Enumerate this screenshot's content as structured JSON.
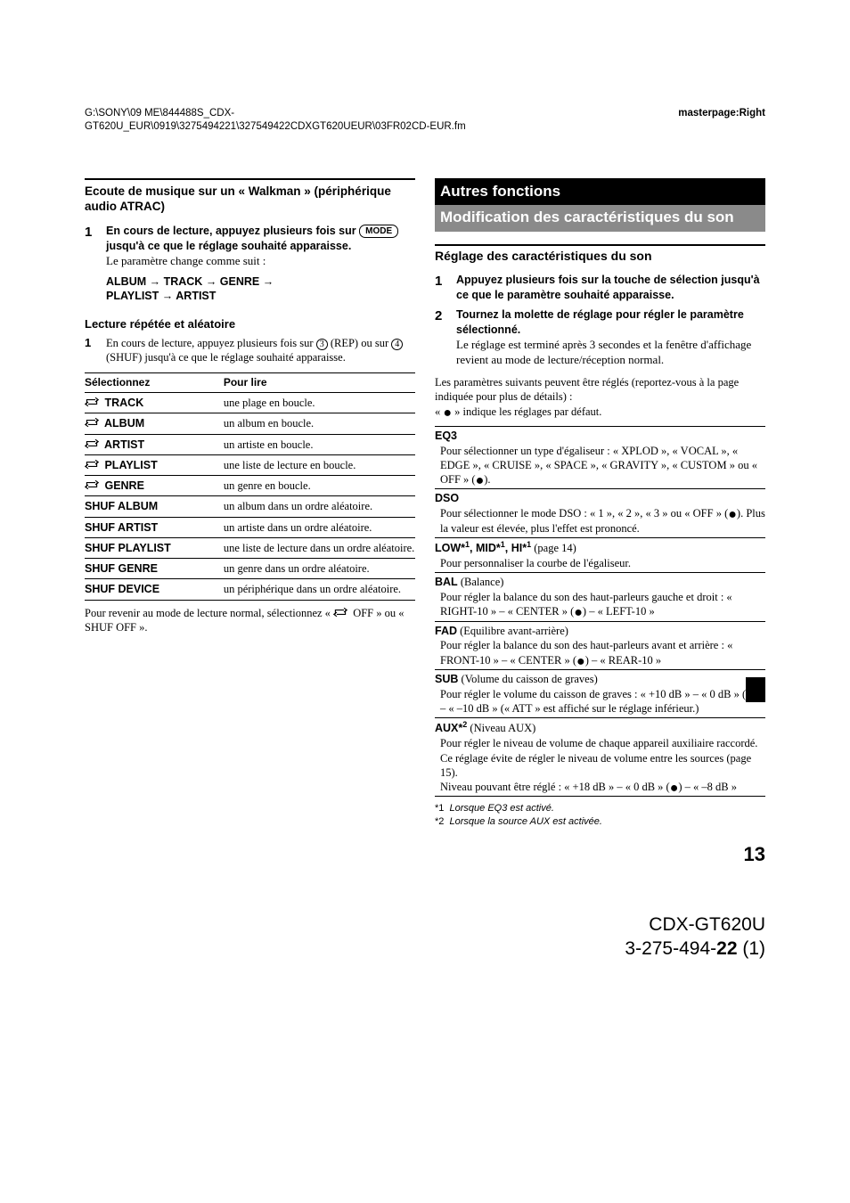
{
  "header": {
    "left_line1": "G:\\SONY\\09 ME\\844488S_CDX-",
    "left_line2": "GT620U_EUR\\0919\\3275494221\\327549422CDXGT620UEUR\\03FR02CD-EUR.fm",
    "right": "masterpage:Right"
  },
  "col1": {
    "title": "Ecoute de musique sur un « Walkman » (périphérique audio ATRAC)",
    "step1_lead_a": "En cours de lecture, appuyez plusieurs fois sur ",
    "step1_mode": "MODE",
    "step1_lead_b": " jusqu'à ce que le réglage souhaité apparaisse.",
    "step1_body": "Le paramètre change comme suit :",
    "seq": "ALBUM → TRACK → GENRE → PLAYLIST → ARTIST",
    "sub_title": "Lecture répétée et aléatoire",
    "step1b_a": "En cours de lecture, appuyez plusieurs fois sur ",
    "step1b_b": " (REP) ou sur ",
    "step1b_c": " (SHUF) jusqu'à ce que le réglage souhaité apparaisse.",
    "circle3": "3",
    "circle4": "4",
    "th1": "Sélectionnez",
    "th2": "Pour lire",
    "rows": [
      {
        "k": "TRACK",
        "icon": true,
        "v": "une plage en boucle."
      },
      {
        "k": "ALBUM",
        "icon": true,
        "v": "un album en boucle."
      },
      {
        "k": "ARTIST",
        "icon": true,
        "v": "un artiste en boucle."
      },
      {
        "k": "PLAYLIST",
        "icon": true,
        "v": "une liste de lecture en boucle."
      },
      {
        "k": "GENRE",
        "icon": true,
        "v": "un genre en boucle."
      },
      {
        "k": "SHUF ALBUM",
        "icon": false,
        "v": "un album dans un ordre aléatoire."
      },
      {
        "k": "SHUF ARTIST",
        "icon": false,
        "v": "un artiste dans un ordre aléatoire."
      },
      {
        "k": "SHUF PLAYLIST",
        "icon": false,
        "v": "une liste de lecture dans un ordre aléatoire."
      },
      {
        "k": "SHUF GENRE",
        "icon": false,
        "v": "un genre dans un ordre aléatoire."
      },
      {
        "k": "SHUF DEVICE",
        "icon": false,
        "v": "un périphérique dans un ordre aléatoire."
      }
    ],
    "post_table_a": "Pour revenir au mode de lecture normal, sélectionnez « ",
    "post_table_b": " OFF » ou « SHUF OFF »."
  },
  "col2": {
    "black_bar": "Autres fonctions",
    "grey_bar": "Modification des caractéristiques du son",
    "section_title": "Réglage des caractéristiques du son",
    "step1": "Appuyez plusieurs fois sur la touche de sélection jusqu'à ce que le paramètre souhaité apparaisse.",
    "step2_lead": "Tournez la molette de réglage pour régler le paramètre sélectionné.",
    "step2_body": "Le réglage est terminé après 3 secondes et la fenêtre d'affichage revient au mode de lecture/réception normal.",
    "intro_a": "Les paramètres suivants peuvent être réglés (reportez-vous à la page indiquée pour plus de détails) :",
    "intro_b": "« ● » indique les réglages par défaut.",
    "params": [
      {
        "name": "EQ3",
        "desc": "Pour sélectionner un type d'égaliseur : « XPLOD », « VOCAL », « EDGE », « CRUISE », « SPACE », « GRAVITY », « CUSTOM » ou « OFF » (●)."
      },
      {
        "name": "DSO",
        "desc": "Pour sélectionner le mode DSO : « 1 », « 2 », « 3 » ou « OFF » (●). Plus la valeur est élevée, plus l'effet est prononcé."
      },
      {
        "name_html": "LOW*¹, MID*¹, HI*¹",
        "suffix": " (page 14)",
        "desc": "Pour personnaliser la courbe de l'égaliseur."
      },
      {
        "name": "BAL",
        "suffix": " (Balance)",
        "desc": "Pour régler la balance du son des haut-parleurs gauche et droit : « RIGHT-10 » – « CENTER » (●) – « LEFT-10 »"
      },
      {
        "name": "FAD",
        "suffix": " (Equilibre avant-arrière)",
        "desc": "Pour régler la balance du son des haut-parleurs avant et arrière : « FRONT-10 » – « CENTER » (●) – « REAR-10 »"
      },
      {
        "name": "SUB",
        "suffix": " (Volume du caisson de graves)",
        "desc": "Pour régler le volume du caisson de graves : « +10 dB » – « 0 dB » (●) – « –10 dB » (« ATT » est affiché sur le réglage inférieur.)"
      },
      {
        "name_html": "AUX*²",
        "suffix": " (Niveau AUX)",
        "desc": "Pour régler le niveau de volume de chaque appareil auxiliaire raccordé. Ce réglage évite de régler le niveau de volume entre les sources (page 15).\nNiveau pouvant être réglé : « +18 dB » – « 0 dB » (●) – « –8 dB »"
      }
    ],
    "fn1": "*1  Lorsque EQ3 est activé.",
    "fn2": "*2  Lorsque la source AUX est activée."
  },
  "page_number": "13",
  "footer": {
    "model": "CDX-GT620U",
    "doc_a": "3-275-494-",
    "doc_b": "22",
    "doc_c": " (1)"
  }
}
